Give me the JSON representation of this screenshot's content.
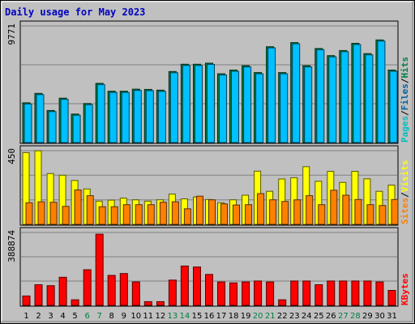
{
  "chart_data": {
    "type": "bar",
    "title": "Daily usage for May 2023",
    "categories": [
      "1",
      "2",
      "3",
      "4",
      "5",
      "6",
      "7",
      "8",
      "9",
      "10",
      "11",
      "12",
      "13",
      "14",
      "15",
      "16",
      "17",
      "18",
      "19",
      "20",
      "21",
      "22",
      "23",
      "24",
      "25",
      "26",
      "27",
      "28",
      "29",
      "30",
      "31"
    ],
    "weekend_days": [
      "6",
      "7",
      "13",
      "14",
      "20",
      "21",
      "27",
      "28"
    ],
    "panels": [
      {
        "id": "hits",
        "ymax": 9771,
        "ymax_label": "9771",
        "right_label_parts": [
          "Pages",
          "/",
          "Files",
          "/",
          "Hits"
        ],
        "right_label_colors": [
          "#00c0c0",
          "#000000",
          "#0060a0",
          "#000000",
          "#008040"
        ],
        "series": [
          {
            "name": "Hits",
            "color": "#008040",
            "values": [
              3330,
              4120,
              2690,
              3720,
              2390,
              3270,
              4960,
              4300,
              4300,
              4470,
              4450,
              4390,
              5950,
              6560,
              6560,
              6650,
              5760,
              6070,
              6440,
              5860,
              8030,
              5860,
              8370,
              6440,
              7880,
              7280,
              7710,
              8310,
              7450,
              8600,
              6070
            ]
          },
          {
            "name": "Files",
            "color": "#00c0ff",
            "values": [
              3230,
              4020,
              2590,
              3620,
              2290,
              3170,
              4860,
              4200,
              4200,
              4370,
              4350,
              4290,
              5850,
              6460,
              6460,
              6550,
              5660,
              5970,
              6340,
              5760,
              7930,
              5760,
              8270,
              6340,
              7780,
              7180,
              7610,
              8210,
              7350,
              8500,
              5970
            ]
          }
        ]
      },
      {
        "id": "visits",
        "ymax": 450,
        "ymax_label": "450",
        "right_label_parts": [
          "Sites",
          "/",
          "Visits"
        ],
        "right_label_colors": [
          "#ff8000",
          "#000000",
          "#ffff00"
        ],
        "series": [
          {
            "name": "Visits",
            "color": "#ffff00",
            "values": [
              438,
              449,
              310,
              300,
              268,
              216,
              142,
              148,
              160,
              150,
              142,
              150,
              185,
              156,
              167,
              152,
              132,
              150,
              178,
              325,
              202,
              277,
              285,
              352,
              263,
              324,
              256,
              324,
              278,
              202,
              240
            ]
          },
          {
            "name": "Sites",
            "color": "#ff8000",
            "values": [
              132,
              138,
              135,
              110,
              210,
              175,
              108,
              108,
              120,
              120,
              120,
              135,
              138,
              95,
              172,
              150,
              125,
              118,
              120,
              188,
              150,
              140,
              150,
              175,
              120,
              208,
              178,
              152,
              120,
              115,
              152
            ]
          }
        ]
      },
      {
        "id": "kbytes",
        "ymax": 388874,
        "ymax_label": "388874",
        "right_label_parts": [
          "KBytes"
        ],
        "right_label_colors": [
          "#ff0000"
        ],
        "series": [
          {
            "name": "KBytes",
            "color": "#ff0000",
            "values": [
              50000,
              110000,
              105000,
              150000,
              30000,
              190000,
              380000,
              160000,
              170000,
              125000,
              20000,
              20000,
              135000,
              210000,
              205000,
              165000,
              125000,
              120000,
              125000,
              130000,
              125000,
              30000,
              130000,
              130000,
              110000,
              130000,
              130000,
              130000,
              130000,
              125000,
              80000
            ]
          }
        ]
      }
    ]
  }
}
